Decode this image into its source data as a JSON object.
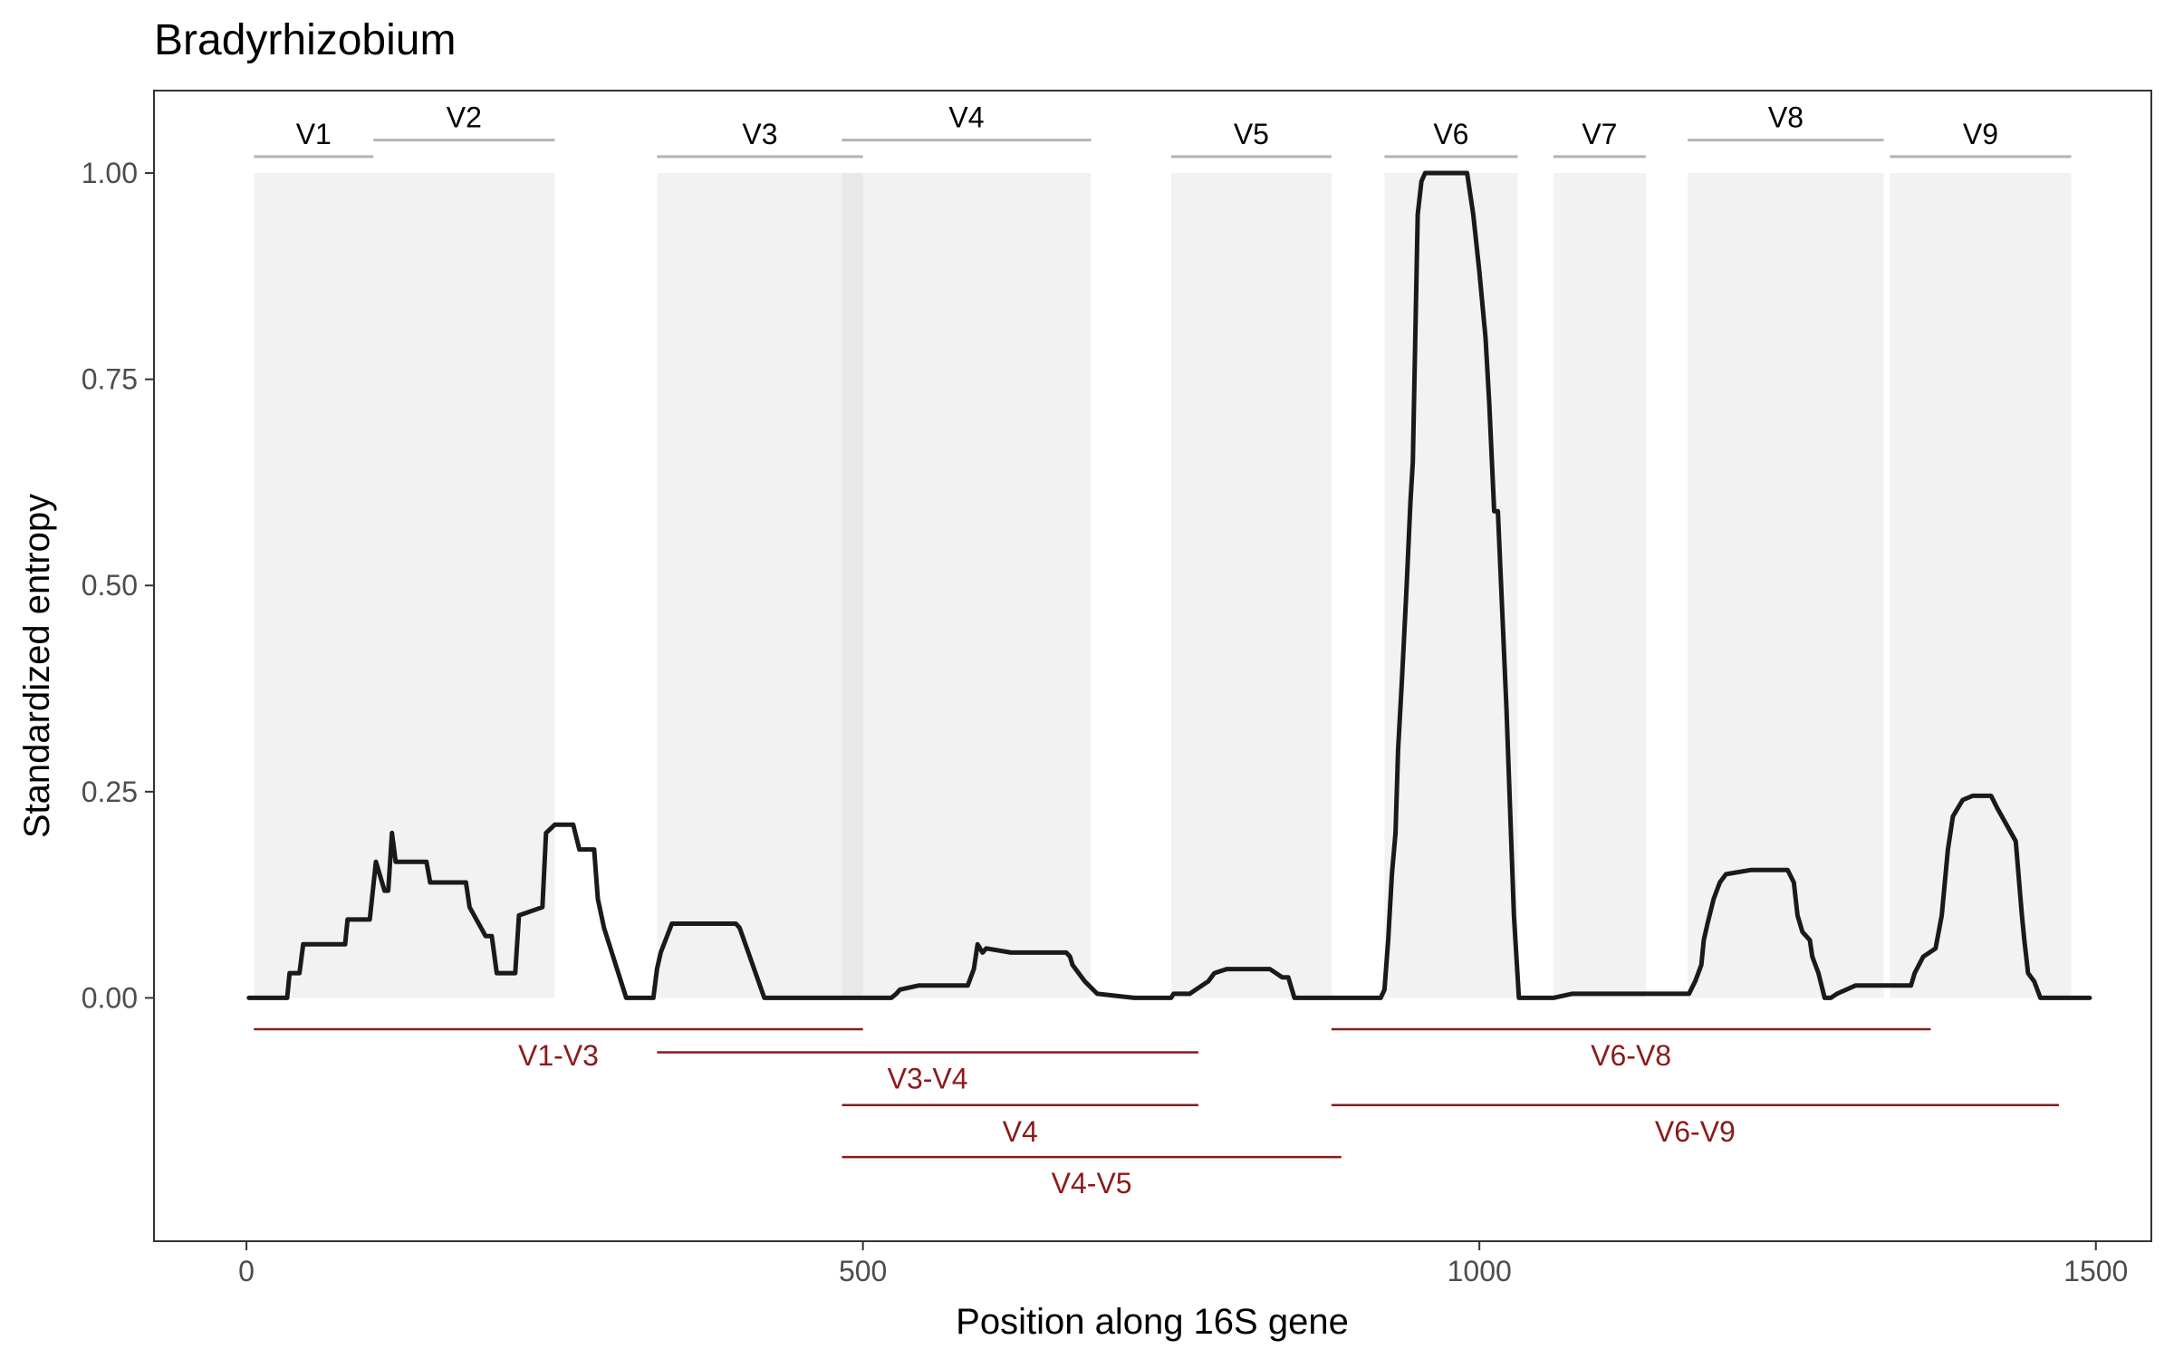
{
  "chart_data": {
    "type": "line",
    "title": "Bradyrhizobium",
    "xlabel": "Position along 16S gene",
    "ylabel": "Standardized entropy",
    "xlim": [
      -75,
      1545
    ],
    "ylim": [
      -0.295,
      1.1
    ],
    "x_ticks": [
      0,
      500,
      1000,
      1500
    ],
    "x_tick_labels": [
      "0",
      "500",
      "1000",
      "1500"
    ],
    "y_ticks": [
      0,
      0.25,
      0.5,
      0.75,
      1.0
    ],
    "y_tick_labels": [
      "0.00",
      "0.25",
      "0.50",
      "0.75",
      "1.00"
    ],
    "grid": false,
    "colors": {
      "line": "#1a1a1a",
      "region_shade": "#f2f2f2",
      "region_overlap": "#e8e8e8",
      "region_bar": "#b3b3b3",
      "amplicon": "#8b1a1a",
      "frame": "#333333"
    },
    "variable_regions": [
      {
        "label": "V1",
        "start": 6,
        "end": 103,
        "label_y": 1.02
      },
      {
        "label": "V2",
        "start": 103,
        "end": 250,
        "label_y": 1.04
      },
      {
        "label": "V3",
        "start": 333,
        "end": 500,
        "label_y": 1.02
      },
      {
        "label": "V4",
        "start": 483,
        "end": 685,
        "label_y": 1.04
      },
      {
        "label": "V5",
        "start": 750,
        "end": 880,
        "label_y": 1.02
      },
      {
        "label": "V6",
        "start": 923,
        "end": 1031,
        "label_y": 1.02
      },
      {
        "label": "V7",
        "start": 1060,
        "end": 1135,
        "label_y": 1.02
      },
      {
        "label": "V8",
        "start": 1169,
        "end": 1328,
        "label_y": 1.04
      },
      {
        "label": "V9",
        "start": 1333,
        "end": 1480,
        "label_y": 1.02
      }
    ],
    "amplicons": [
      {
        "label": "V1-V3",
        "start": 6,
        "end": 500,
        "y": -0.038
      },
      {
        "label": "V3-V4",
        "start": 333,
        "end": 772,
        "y": -0.066
      },
      {
        "label": "V6-V8",
        "start": 880,
        "end": 1366,
        "y": -0.038
      },
      {
        "label": "V4",
        "start": 483,
        "end": 772,
        "y": -0.13
      },
      {
        "label": "V6-V9",
        "start": 880,
        "end": 1470,
        "y": -0.13
      },
      {
        "label": "V4-V5",
        "start": 483,
        "end": 888,
        "y": -0.193
      }
    ],
    "series": [
      {
        "x": [
          2,
          33,
          35,
          43,
          46,
          67,
          80,
          82,
          94,
          100,
          105,
          112,
          115,
          118,
          121,
          124,
          146,
          149,
          169,
          172,
          178,
          181,
          194,
          199,
          203,
          207,
          218,
          221,
          240,
          243,
          250,
          265,
          270,
          275,
          282,
          285,
          290,
          308,
          318,
          320,
          324,
          327,
          330,
          333,
          336,
          345,
          370,
          390,
          393,
          397,
          400,
          420,
          450,
          480,
          500,
          523,
          527,
          530,
          545,
          560,
          580,
          585,
          590,
          593,
          597,
          600,
          620,
          650,
          652,
          655,
          660,
          665,
          668,
          670,
          675,
          680,
          690,
          720,
          750,
          752,
          762,
          765,
          770,
          775,
          780,
          785,
          795,
          820,
          830,
          835,
          840,
          845,
          850,
          880,
          900,
          920,
          923,
          926,
          929,
          932,
          934,
          937,
          938,
          941,
          944,
          946,
          950,
          953,
          956,
          960,
          965,
          990,
          995,
          1000,
          1005,
          1008,
          1012,
          1015,
          1022,
          1028,
          1032,
          1035,
          1060,
          1075,
          1100,
          1120,
          1140,
          1155,
          1170,
          1175,
          1180,
          1182,
          1185,
          1190,
          1195,
          1200,
          1220,
          1245,
          1250,
          1255,
          1258,
          1262,
          1268,
          1270,
          1275,
          1280,
          1285,
          1290,
          1305,
          1310,
          1330,
          1340,
          1350,
          1353,
          1360,
          1370,
          1375,
          1380,
          1384,
          1388,
          1392,
          1400,
          1415,
          1420,
          1435,
          1440,
          1442,
          1445,
          1450,
          1455,
          1470,
          1495
        ],
        "y": [
          0.0,
          0.0,
          0.03,
          0.03,
          0.065,
          0.065,
          0.065,
          0.095,
          0.095,
          0.095,
          0.165,
          0.13,
          0.13,
          0.2,
          0.165,
          0.165,
          0.165,
          0.14,
          0.14,
          0.14,
          0.14,
          0.11,
          0.075,
          0.075,
          0.03,
          0.03,
          0.03,
          0.1,
          0.11,
          0.2,
          0.21,
          0.21,
          0.18,
          0.18,
          0.18,
          0.12,
          0.085,
          0.0,
          0.0,
          0.0,
          0.0,
          0.0,
          0.0,
          0.035,
          0.055,
          0.09,
          0.09,
          0.09,
          0.09,
          0.09,
          0.085,
          0.0,
          0.0,
          0.0,
          0.0,
          0.0,
          0.005,
          0.01,
          0.015,
          0.015,
          0.015,
          0.015,
          0.035,
          0.065,
          0.055,
          0.06,
          0.055,
          0.055,
          0.055,
          0.055,
          0.055,
          0.055,
          0.05,
          0.04,
          0.03,
          0.02,
          0.005,
          0.0,
          0.0,
          0.005,
          0.005,
          0.005,
          0.01,
          0.015,
          0.02,
          0.03,
          0.035,
          0.035,
          0.035,
          0.03,
          0.025,
          0.025,
          0.0,
          0.0,
          0.0,
          0.0,
          0.01,
          0.07,
          0.15,
          0.2,
          0.3,
          0.38,
          0.41,
          0.5,
          0.6,
          0.65,
          0.95,
          0.99,
          1.0,
          1.0,
          1.0,
          1.0,
          0.95,
          0.88,
          0.8,
          0.72,
          0.59,
          0.59,
          0.35,
          0.1,
          0.0,
          0.0,
          0.0,
          0.005,
          0.005,
          0.005,
          0.005,
          0.005,
          0.005,
          0.02,
          0.04,
          0.07,
          0.09,
          0.12,
          0.14,
          0.15,
          0.155,
          0.155,
          0.155,
          0.14,
          0.1,
          0.08,
          0.07,
          0.05,
          0.03,
          0.0,
          0.0,
          0.005,
          0.015,
          0.015,
          0.015,
          0.015,
          0.015,
          0.03,
          0.05,
          0.06,
          0.1,
          0.18,
          0.22,
          0.23,
          0.24,
          0.245,
          0.245,
          0.23,
          0.19,
          0.1,
          0.07,
          0.03,
          0.02,
          0.0,
          0.0,
          0.0
        ]
      }
    ]
  }
}
